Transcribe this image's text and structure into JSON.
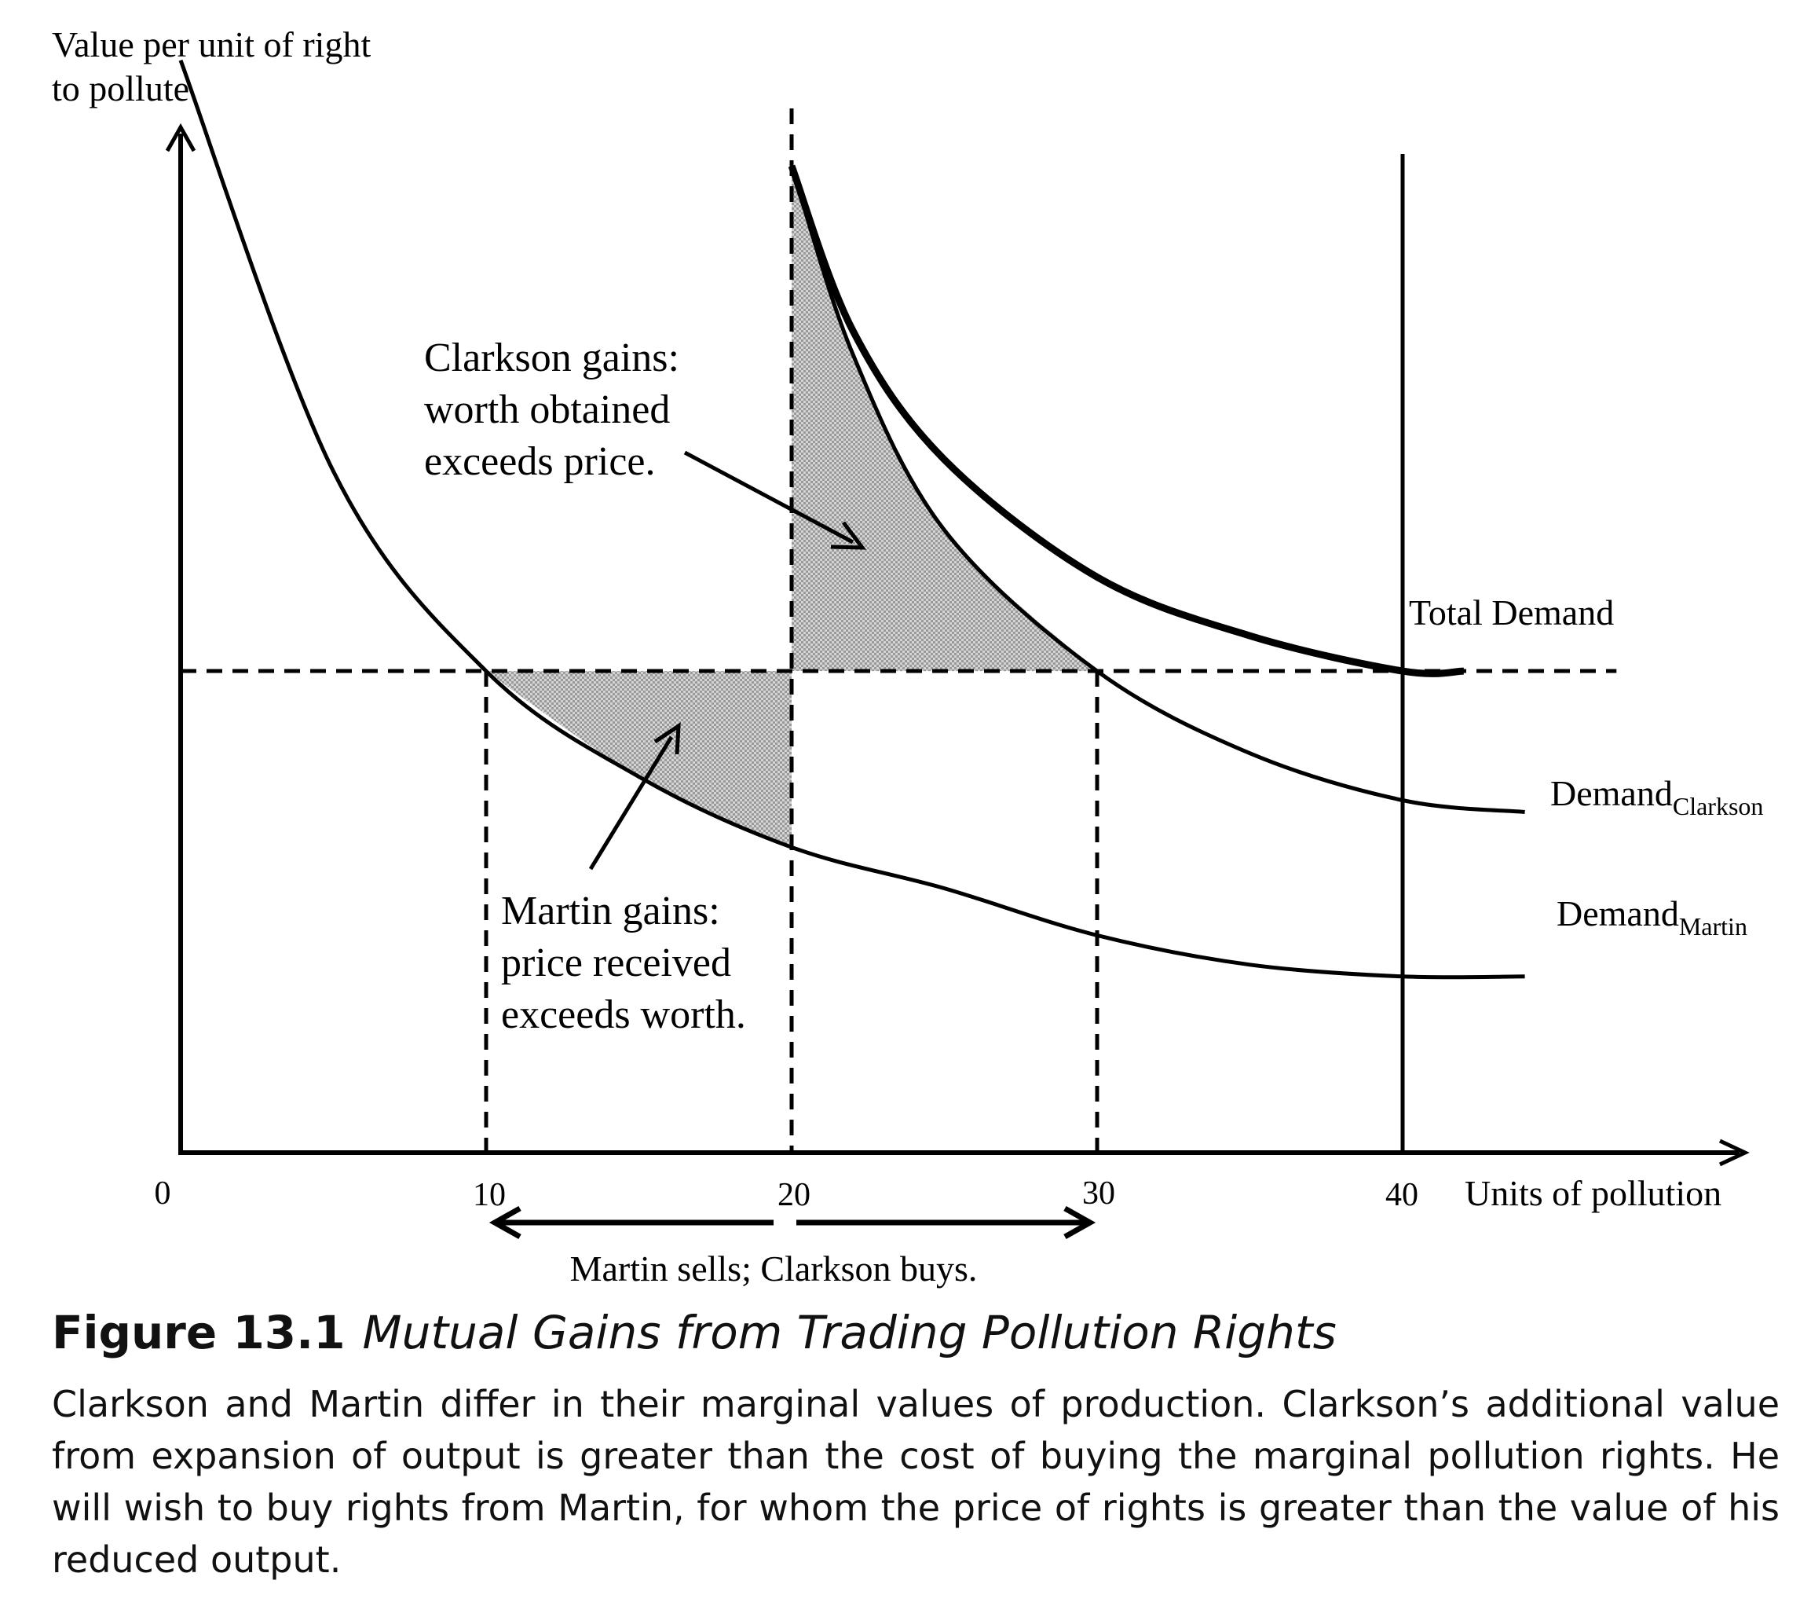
{
  "chart_data": {
    "type": "line",
    "xlabel": "Units of pollution",
    "ylabel_lines": [
      "Value per unit of right",
      "to pollute"
    ],
    "x_ticks": [
      "0",
      "10",
      "20",
      "30",
      "40"
    ],
    "price_level": 41,
    "series": [
      {
        "name": "Demand",
        "sub": "Martin",
        "points": [
          [
            0,
            93
          ],
          [
            5,
            58
          ],
          [
            10,
            41
          ],
          [
            15,
            32
          ],
          [
            20,
            26
          ],
          [
            25,
            22.5
          ],
          [
            30,
            18.5
          ],
          [
            35,
            16
          ],
          [
            40,
            15
          ],
          [
            44,
            15
          ]
        ]
      },
      {
        "name": "Demand",
        "sub": "Clarkson",
        "points": [
          [
            20,
            84
          ],
          [
            22,
            68
          ],
          [
            25,
            53
          ],
          [
            30,
            41
          ],
          [
            35,
            34
          ],
          [
            40,
            30
          ],
          [
            44,
            29
          ]
        ]
      },
      {
        "name": "Total Demand",
        "points": [
          [
            20,
            84
          ],
          [
            22,
            70
          ],
          [
            25,
            59
          ],
          [
            30,
            49
          ],
          [
            35,
            44
          ],
          [
            40,
            41
          ],
          [
            42,
            41
          ]
        ]
      }
    ],
    "annotations": [
      {
        "id": "clarkson",
        "lines": [
          "Clarkson gains:",
          "worth obtained",
          "exceeds price."
        ]
      },
      {
        "id": "martin",
        "lines": [
          "Martin gains:",
          "price received",
          "exceeds worth."
        ]
      },
      {
        "id": "trade",
        "lines": [
          "Martin sells; Clarkson buys."
        ]
      }
    ]
  },
  "caption": {
    "number": "Figure 13.1",
    "title": "Mutual Gains from Trading Pollution Rights",
    "body": "Clarkson and Martin differ in their marginal values of production. Clarkson’s additional value from expansion of output is greater than the cost of buying the marginal pollution rights. He will wish to buy rights from Martin, for whom the price of rights is greater than the value of his reduced output."
  }
}
